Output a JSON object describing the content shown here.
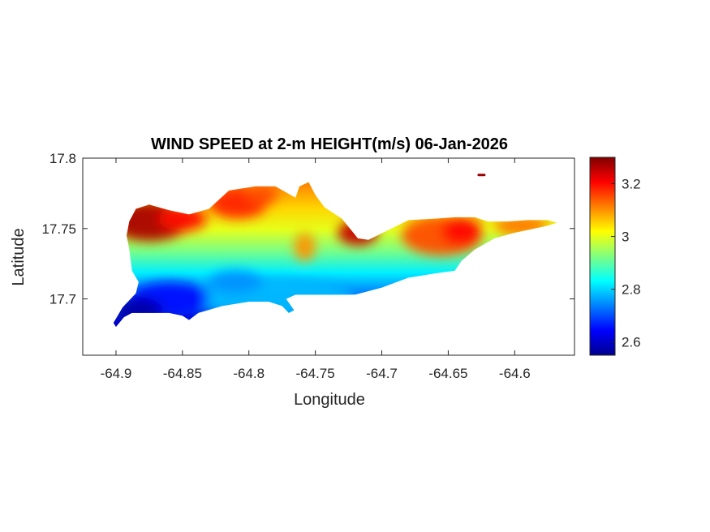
{
  "chart_data": {
    "type": "heatmap",
    "title": "WIND SPEED at 2-m HEIGHT(m/s) 06-Jan-2026",
    "xlabel": "Longitude",
    "ylabel": "Latitude",
    "xlim": [
      -64.925,
      -64.555
    ],
    "ylim": [
      17.66,
      17.8
    ],
    "x_ticks": [
      -64.9,
      -64.85,
      -64.8,
      -64.75,
      -64.7,
      -64.65,
      -64.6
    ],
    "x_tick_labels": [
      "-64.9",
      "-64.85",
      "-64.8",
      "-64.75",
      "-64.7",
      "-64.65",
      "-64.6"
    ],
    "y_ticks": [
      17.7,
      17.75,
      17.8
    ],
    "y_tick_labels": [
      "17.7",
      "17.75",
      "17.8"
    ],
    "colormap": "jet",
    "colorbar": {
      "range": [
        2.55,
        3.3
      ],
      "ticks": [
        2.6,
        2.8,
        3,
        3.2
      ],
      "tick_labels": [
        "2.6",
        "2.8",
        "3",
        "3.2"
      ]
    },
    "colormap_stops": [
      "#00008f",
      "#0000ff",
      "#0080ff",
      "#00ffff",
      "#80ff80",
      "#ffff00",
      "#ff8000",
      "#ff0000",
      "#800000"
    ],
    "island_outline": [
      [
        -64.9,
        17.68
      ],
      [
        -64.894,
        17.687
      ],
      [
        -64.888,
        17.69
      ],
      [
        -64.86,
        17.69
      ],
      [
        -64.85,
        17.688
      ],
      [
        -64.845,
        17.685
      ],
      [
        -64.838,
        17.69
      ],
      [
        -64.82,
        17.695
      ],
      [
        -64.8,
        17.698
      ],
      [
        -64.785,
        17.698
      ],
      [
        -64.775,
        17.695
      ],
      [
        -64.77,
        17.69
      ],
      [
        -64.766,
        17.692
      ],
      [
        -64.772,
        17.7
      ],
      [
        -64.765,
        17.703
      ],
      [
        -64.74,
        17.703
      ],
      [
        -64.72,
        17.703
      ],
      [
        -64.7,
        17.708
      ],
      [
        -64.68,
        17.715
      ],
      [
        -64.66,
        17.718
      ],
      [
        -64.645,
        17.72
      ],
      [
        -64.64,
        17.727
      ],
      [
        -64.63,
        17.735
      ],
      [
        -64.615,
        17.743
      ],
      [
        -64.6,
        17.747
      ],
      [
        -64.585,
        17.75
      ],
      [
        -64.575,
        17.752
      ],
      [
        -64.568,
        17.754
      ],
      [
        -64.575,
        17.756
      ],
      [
        -64.59,
        17.756
      ],
      [
        -64.605,
        17.755
      ],
      [
        -64.62,
        17.755
      ],
      [
        -64.63,
        17.758
      ],
      [
        -64.645,
        17.758
      ],
      [
        -64.66,
        17.757
      ],
      [
        -64.68,
        17.756
      ],
      [
        -64.695,
        17.749
      ],
      [
        -64.71,
        17.742
      ],
      [
        -64.718,
        17.743
      ],
      [
        -64.73,
        17.757
      ],
      [
        -64.743,
        17.765
      ],
      [
        -64.75,
        17.774
      ],
      [
        -64.755,
        17.783
      ],
      [
        -64.762,
        17.78
      ],
      [
        -64.765,
        17.772
      ],
      [
        -64.78,
        17.78
      ],
      [
        -64.795,
        17.78
      ],
      [
        -64.815,
        17.777
      ],
      [
        -64.83,
        17.764
      ],
      [
        -64.845,
        17.76
      ],
      [
        -64.86,
        17.763
      ],
      [
        -64.875,
        17.767
      ],
      [
        -64.885,
        17.764
      ],
      [
        -64.89,
        17.755
      ],
      [
        -64.892,
        17.745
      ],
      [
        -64.89,
        17.735
      ],
      [
        -64.888,
        17.72
      ],
      [
        -64.883,
        17.712
      ],
      [
        -64.885,
        17.704
      ],
      [
        -64.895,
        17.694
      ],
      [
        -64.902,
        17.683
      ]
    ],
    "color_patches": [
      {
        "lon": -64.875,
        "lat": 17.755,
        "rx": 0.03,
        "ry": 0.014,
        "value": 3.27
      },
      {
        "lon": -64.85,
        "lat": 17.757,
        "rx": 0.018,
        "ry": 0.009,
        "value": 3.2
      },
      {
        "lon": -64.808,
        "lat": 17.768,
        "rx": 0.022,
        "ry": 0.011,
        "value": 3.18
      },
      {
        "lon": -64.79,
        "lat": 17.774,
        "rx": 0.012,
        "ry": 0.007,
        "value": 3.15
      },
      {
        "lon": -64.758,
        "lat": 17.737,
        "rx": 0.008,
        "ry": 0.01,
        "value": 3.1
      },
      {
        "lon": -64.718,
        "lat": 17.747,
        "rx": 0.015,
        "ry": 0.009,
        "value": 3.25
      },
      {
        "lon": -64.655,
        "lat": 17.745,
        "rx": 0.03,
        "ry": 0.014,
        "value": 3.15
      },
      {
        "lon": -64.595,
        "lat": 17.752,
        "rx": 0.02,
        "ry": 0.007,
        "value": 3.12
      },
      {
        "lon": -64.64,
        "lat": 17.748,
        "rx": 0.015,
        "ry": 0.01,
        "value": 3.2
      },
      {
        "lon": -64.78,
        "lat": 17.7,
        "rx": 0.06,
        "ry": 0.015,
        "value": 2.78
      },
      {
        "lon": -64.86,
        "lat": 17.7,
        "rx": 0.03,
        "ry": 0.012,
        "value": 2.65
      },
      {
        "lon": -64.883,
        "lat": 17.692,
        "rx": 0.018,
        "ry": 0.009,
        "value": 2.57
      },
      {
        "lon": -64.81,
        "lat": 17.712,
        "rx": 0.02,
        "ry": 0.008,
        "value": 2.75
      }
    ],
    "marker": {
      "lon": -64.625,
      "lat": 17.788,
      "value": 3.28
    }
  }
}
